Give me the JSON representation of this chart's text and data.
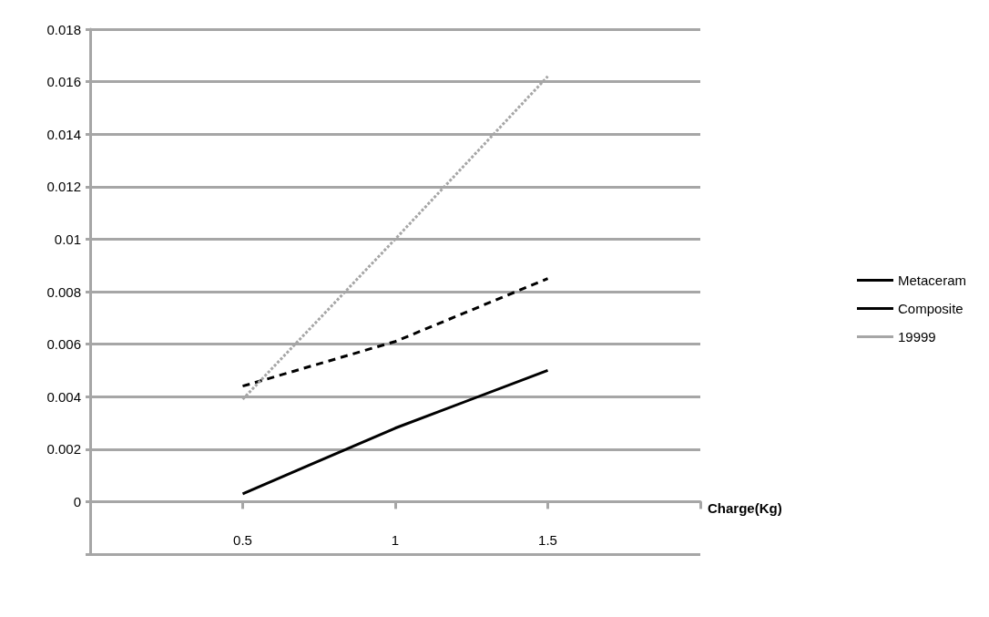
{
  "chart_data": {
    "type": "line",
    "xlabel": "Charge(Kg)",
    "x": [
      0.5,
      1,
      1.5
    ],
    "series": [
      {
        "name": "Metaceram",
        "color": "#000000",
        "line_style": "solid",
        "values": [
          0.0003,
          0.0028,
          0.005
        ]
      },
      {
        "name": "Composite",
        "color": "#000000",
        "line_style": "dashed",
        "values": [
          0.0044,
          0.0061,
          0.0085
        ]
      },
      {
        "name": "19999",
        "color": "#a6a6a6",
        "line_style": "dotted",
        "values": [
          0.0039,
          0.01,
          0.0162
        ]
      }
    ],
    "xlim": [
      0,
      2
    ],
    "xticks": [
      {
        "value": 0,
        "label": null
      },
      0.5,
      1,
      1.5,
      {
        "value": 2,
        "label": null
      }
    ],
    "ylim": [
      -0.002,
      0.018
    ],
    "yticks": [
      {
        "value": -0.002,
        "label": null
      },
      0,
      0.002,
      0.004,
      0.006,
      0.008,
      0.01,
      0.012,
      0.014,
      0.016,
      0.018
    ],
    "grid": "y",
    "legend": "right",
    "marker": "none"
  }
}
